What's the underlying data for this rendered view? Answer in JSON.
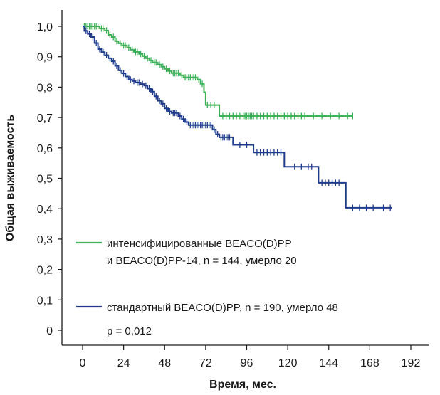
{
  "chart_data": {
    "type": "line",
    "subtype": "kaplan-meier",
    "xlabel": "Время, мес.",
    "ylabel": "Общая выживаемость",
    "xlim": [
      0,
      192
    ],
    "ylim": [
      0,
      1.0
    ],
    "x_ticks": [
      0,
      24,
      48,
      72,
      96,
      120,
      144,
      168,
      192
    ],
    "y_ticks": [
      0,
      0.1,
      0.2,
      0.3,
      0.4,
      0.5,
      0.6,
      0.7,
      0.8,
      0.9,
      1.0
    ],
    "x_tick_labels": [
      "0",
      "24",
      "48",
      "72",
      "96",
      "120",
      "144",
      "168",
      "192"
    ],
    "y_tick_labels": [
      "0",
      "0,1",
      "0,2",
      "0,3",
      "0,4",
      "0,5",
      "0,6",
      "0,7",
      "0,8",
      "0,9",
      "1,0"
    ],
    "grid": false,
    "legend_position": "bottom-left",
    "series": [
      {
        "legend": [
          "интенсифицированные BEACO(D)PP",
          "и BEACO(D)PP-14, n = 144, умерло 20"
        ],
        "color": "#3cb15a",
        "steps": [
          [
            0,
            1.0
          ],
          [
            10,
            0.993
          ],
          [
            13,
            0.986
          ],
          [
            15,
            0.972
          ],
          [
            17,
            0.965
          ],
          [
            19,
            0.951
          ],
          [
            21,
            0.944
          ],
          [
            23,
            0.937
          ],
          [
            26,
            0.93
          ],
          [
            28,
            0.923
          ],
          [
            30,
            0.916
          ],
          [
            33,
            0.909
          ],
          [
            35,
            0.902
          ],
          [
            37,
            0.895
          ],
          [
            39,
            0.888
          ],
          [
            41,
            0.881
          ],
          [
            44,
            0.874
          ],
          [
            46,
            0.867
          ],
          [
            48,
            0.86
          ],
          [
            50,
            0.853
          ],
          [
            52,
            0.846
          ],
          [
            57,
            0.839
          ],
          [
            59,
            0.832
          ],
          [
            67,
            0.825
          ],
          [
            69,
            0.811
          ],
          [
            71,
            0.783
          ],
          [
            72,
            0.741
          ],
          [
            80,
            0.705
          ],
          [
            158,
            0.705
          ]
        ],
        "censors": [
          1,
          2,
          3,
          4,
          5,
          6,
          7,
          8,
          9,
          11,
          12,
          14,
          16,
          18,
          20,
          22,
          24,
          25,
          27,
          29,
          31,
          32,
          34,
          36,
          38,
          40,
          42,
          43,
          45,
          47,
          49,
          51,
          53,
          54,
          55,
          56,
          58,
          60,
          61,
          62,
          63,
          64,
          65,
          66,
          68,
          70,
          73,
          75,
          77,
          82,
          84,
          86,
          88,
          90,
          92,
          94,
          95,
          96,
          97,
          98,
          99,
          100,
          102,
          104,
          106,
          108,
          110,
          112,
          114,
          116,
          118,
          120,
          122,
          124,
          126,
          128,
          130,
          135,
          140,
          145,
          150,
          155,
          158
        ]
      },
      {
        "legend": [
          "стандартный BEACO(D)PP, n = 190, умерло 48"
        ],
        "color": "#1f3c8c",
        "steps": [
          [
            0,
            1.0
          ],
          [
            1,
            0.985
          ],
          [
            3,
            0.975
          ],
          [
            5,
            0.965
          ],
          [
            7,
            0.945
          ],
          [
            9,
            0.925
          ],
          [
            11,
            0.915
          ],
          [
            13,
            0.905
          ],
          [
            15,
            0.895
          ],
          [
            17,
            0.885
          ],
          [
            19,
            0.87
          ],
          [
            21,
            0.855
          ],
          [
            23,
            0.845
          ],
          [
            25,
            0.835
          ],
          [
            27,
            0.825
          ],
          [
            29,
            0.82
          ],
          [
            31,
            0.815
          ],
          [
            34,
            0.81
          ],
          [
            36,
            0.805
          ],
          [
            38,
            0.795
          ],
          [
            40,
            0.785
          ],
          [
            42,
            0.77
          ],
          [
            44,
            0.755
          ],
          [
            46,
            0.745
          ],
          [
            48,
            0.73
          ],
          [
            50,
            0.72
          ],
          [
            52,
            0.715
          ],
          [
            56,
            0.705
          ],
          [
            58,
            0.695
          ],
          [
            60,
            0.685
          ],
          [
            62,
            0.675
          ],
          [
            76,
            0.66
          ],
          [
            78,
            0.645
          ],
          [
            80,
            0.635
          ],
          [
            88,
            0.61
          ],
          [
            100,
            0.585
          ],
          [
            118,
            0.538
          ],
          [
            138,
            0.485
          ],
          [
            154,
            0.403
          ],
          [
            181,
            0.403
          ]
        ],
        "censors": [
          2,
          4,
          6,
          8,
          10,
          12,
          14,
          16,
          18,
          20,
          22,
          24,
          26,
          28,
          30,
          32,
          33,
          35,
          37,
          39,
          41,
          43,
          45,
          47,
          49,
          51,
          53,
          54,
          55,
          57,
          59,
          61,
          63,
          64,
          65,
          66,
          67,
          68,
          69,
          70,
          71,
          72,
          73,
          74,
          75,
          77,
          79,
          81,
          82,
          83,
          84,
          85,
          86,
          92,
          96,
          102,
          104,
          106,
          108,
          110,
          112,
          114,
          116,
          124,
          128,
          132,
          134,
          140,
          142,
          144,
          146,
          148,
          150,
          158,
          162,
          166,
          170,
          176,
          180
        ]
      }
    ],
    "annotation": "p = 0,012"
  }
}
